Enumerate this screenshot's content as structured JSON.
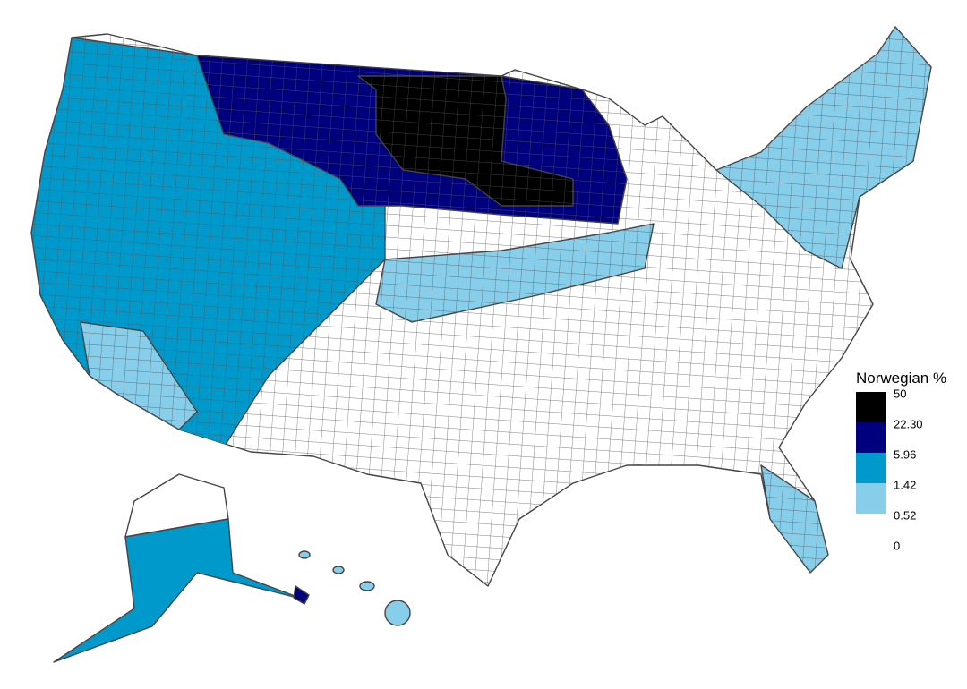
{
  "legend": {
    "title": "Norwegian %",
    "breaks": [
      50,
      {
        "value": 22.3,
        "label": "22.30"
      },
      5.96,
      1.42,
      0.52,
      0
    ],
    "colors": [
      "#000000",
      "#00007f",
      "#0099cc",
      "#87ceeb",
      "#ffffff"
    ]
  }
}
